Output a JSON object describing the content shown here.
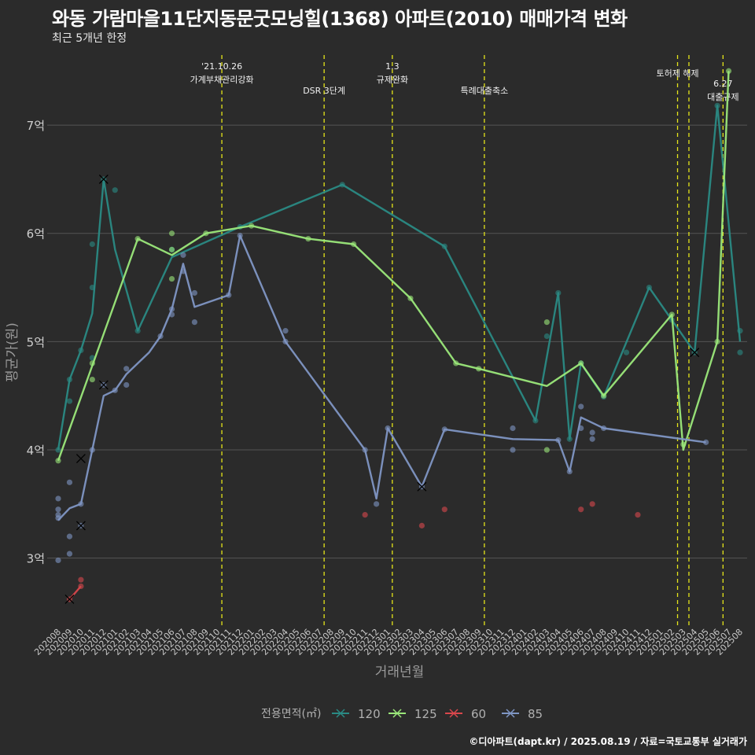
{
  "header": {
    "title": "와동 가람마을11단지동문굿모닝힐(1368) 아파트(2010) 매매가격 변화",
    "subtitle": "최근 5개년 한정"
  },
  "footer": {
    "credit": "©디아파트(dapt.kr) / 2025.08.19 / 자료=국토교통부 실거래가"
  },
  "colors": {
    "background": "#2b2b2b",
    "grid": "#555555",
    "event_line": "#e5e51a",
    "series_120": "#2a8a84",
    "series_125": "#9be87a",
    "series_60": "#d9474c",
    "series_85": "#7f96c4"
  },
  "chart_data": {
    "type": "line",
    "xlabel": "거래년월",
    "ylabel": "평균가(원)",
    "y_ticks": [
      {
        "value": 3,
        "label": "3억"
      },
      {
        "value": 4,
        "label": "4억"
      },
      {
        "value": 5,
        "label": "5억"
      },
      {
        "value": 6,
        "label": "6억"
      },
      {
        "value": 7,
        "label": "7억"
      }
    ],
    "ylim": [
      2.38,
      7.72
    ],
    "categories": [
      "202008",
      "202009",
      "202010",
      "202011",
      "202012",
      "202101",
      "202102",
      "202103",
      "202104",
      "202105",
      "202106",
      "202107",
      "202108",
      "202109",
      "202110",
      "202111",
      "202112",
      "202201",
      "202202",
      "202203",
      "202204",
      "202205",
      "202206",
      "202207",
      "202208",
      "202209",
      "202210",
      "202211",
      "202212",
      "202301",
      "202302",
      "202303",
      "202304",
      "202305",
      "202306",
      "202307",
      "202308",
      "202309",
      "202310",
      "202311",
      "202312",
      "202401",
      "202402",
      "202403",
      "202404",
      "202405",
      "202406",
      "202407",
      "202408",
      "202409",
      "202410",
      "202411",
      "202412",
      "202501",
      "202502",
      "202503",
      "202504",
      "202505",
      "202506",
      "202507",
      "202508"
    ],
    "legend": {
      "title": "전용면적(㎡)",
      "position": "bottom",
      "entries": [
        "120",
        "125",
        "60",
        "85"
      ]
    },
    "events": [
      {
        "x": 14.4,
        "lines": [
          "'21.10.26",
          "가계부채관리강화"
        ],
        "row": 1
      },
      {
        "x": 23.4,
        "lines": [
          "DSR 3단계"
        ],
        "row": 2
      },
      {
        "x": 29.4,
        "lines": [
          "1.3",
          "규제완화"
        ],
        "row": 1
      },
      {
        "x": 37.5,
        "lines": [
          "특례대출축소"
        ],
        "row": 2
      },
      {
        "x": 54.5,
        "lines": [
          "토허제 해제"
        ],
        "row": 0
      },
      {
        "x": 55.5,
        "lines": [],
        "row": 0
      },
      {
        "x": 58.5,
        "lines": [
          "6.27",
          "대출규제"
        ],
        "row": 3
      }
    ],
    "series": [
      {
        "name": "120",
        "color": "#2a8a84",
        "line": [
          [
            0,
            4.0
          ],
          [
            1,
            4.65
          ],
          [
            2,
            4.92
          ],
          [
            3,
            5.26
          ],
          [
            4,
            6.5
          ],
          [
            5,
            5.85
          ],
          [
            7,
            5.1
          ],
          [
            10,
            5.78
          ],
          [
            16,
            6.06
          ],
          [
            25,
            6.45
          ],
          [
            34,
            5.88
          ],
          [
            42,
            4.27
          ],
          [
            44,
            5.45
          ],
          [
            45,
            4.1
          ],
          [
            46,
            4.8
          ],
          [
            48,
            4.49
          ],
          [
            52,
            5.5
          ],
          [
            54,
            5.2
          ],
          [
            56,
            4.9
          ],
          [
            58,
            7.18
          ],
          [
            60,
            5.0
          ]
        ],
        "points": [
          [
            0,
            4.0
          ],
          [
            1,
            4.65
          ],
          [
            1,
            4.45
          ],
          [
            2,
            4.92
          ],
          [
            3,
            5.9
          ],
          [
            3,
            5.5
          ],
          [
            3,
            4.85
          ],
          [
            4,
            6.5
          ],
          [
            5,
            6.4
          ],
          [
            7,
            5.1
          ],
          [
            10,
            5.85
          ],
          [
            16,
            6.06
          ],
          [
            25,
            6.45
          ],
          [
            34,
            5.88
          ],
          [
            42,
            4.27
          ],
          [
            43,
            5.05
          ],
          [
            44,
            5.45
          ],
          [
            45,
            4.1
          ],
          [
            46,
            4.8
          ],
          [
            48,
            4.49
          ],
          [
            50,
            4.9
          ],
          [
            52,
            5.5
          ],
          [
            54,
            5.2
          ],
          [
            56,
            4.9
          ],
          [
            58,
            7.18
          ],
          [
            60,
            5.1
          ],
          [
            60,
            4.9
          ]
        ],
        "markers": [
          [
            2,
            3.92
          ],
          [
            4,
            6.5
          ],
          [
            56,
            4.9
          ]
        ]
      },
      {
        "name": "125",
        "color": "#9be87a",
        "line": [
          [
            0,
            3.9
          ],
          [
            7,
            5.95
          ],
          [
            10,
            5.8
          ],
          [
            13,
            6.0
          ],
          [
            17,
            6.07
          ],
          [
            22,
            5.95
          ],
          [
            26,
            5.9
          ],
          [
            31,
            5.4
          ],
          [
            35,
            4.8
          ],
          [
            37,
            4.75
          ],
          [
            43,
            4.59
          ],
          [
            46,
            4.8
          ],
          [
            48,
            4.5
          ],
          [
            54,
            5.25
          ],
          [
            55,
            4.0
          ],
          [
            58,
            5.0
          ],
          [
            59,
            7.5
          ]
        ],
        "points": [
          [
            0,
            3.9
          ],
          [
            3,
            4.8
          ],
          [
            3,
            4.65
          ],
          [
            7,
            5.95
          ],
          [
            10,
            6.0
          ],
          [
            10,
            5.85
          ],
          [
            10,
            5.58
          ],
          [
            13,
            6.0
          ],
          [
            17,
            6.07
          ],
          [
            22,
            5.95
          ],
          [
            26,
            5.9
          ],
          [
            31,
            5.4
          ],
          [
            35,
            4.8
          ],
          [
            37,
            4.75
          ],
          [
            43,
            5.18
          ],
          [
            43,
            4.0
          ],
          [
            46,
            4.8
          ],
          [
            48,
            4.5
          ],
          [
            54,
            5.25
          ],
          [
            55,
            4.05
          ],
          [
            58,
            5.0
          ],
          [
            59,
            7.5
          ]
        ],
        "markers": []
      },
      {
        "name": "60",
        "color": "#d9474c",
        "line": [
          [
            1,
            2.62
          ],
          [
            2,
            2.74
          ]
        ],
        "points": [
          [
            1,
            2.62
          ],
          [
            2,
            2.8
          ],
          [
            2,
            2.74
          ],
          [
            27,
            3.4
          ],
          [
            32,
            3.3
          ],
          [
            34,
            3.45
          ],
          [
            46,
            3.45
          ],
          [
            47,
            3.5
          ],
          [
            51,
            3.4
          ]
        ],
        "markers": [
          [
            1,
            2.62
          ]
        ]
      },
      {
        "name": "85",
        "color": "#7f96c4",
        "line": [
          [
            0,
            3.35
          ],
          [
            1,
            3.46
          ],
          [
            2,
            3.5
          ],
          [
            3,
            4.0
          ],
          [
            4,
            4.5
          ],
          [
            5,
            4.55
          ],
          [
            6,
            4.7
          ],
          [
            8,
            4.9
          ],
          [
            9,
            5.05
          ],
          [
            10,
            5.3
          ],
          [
            11,
            5.72
          ],
          [
            12,
            5.32
          ],
          [
            15,
            5.43
          ],
          [
            16,
            5.98
          ],
          [
            20,
            5.0
          ],
          [
            27,
            4.0
          ],
          [
            28,
            3.55
          ],
          [
            29,
            4.2
          ],
          [
            32,
            3.66
          ],
          [
            34,
            4.19
          ],
          [
            40,
            4.1
          ],
          [
            44,
            4.09
          ],
          [
            45,
            3.8
          ],
          [
            46,
            4.3
          ],
          [
            48,
            4.2
          ],
          [
            57,
            4.07
          ]
        ],
        "points": [
          [
            0,
            3.55
          ],
          [
            0,
            3.45
          ],
          [
            0,
            3.4
          ],
          [
            0,
            3.37
          ],
          [
            0,
            2.98
          ],
          [
            1,
            3.7
          ],
          [
            1,
            3.2
          ],
          [
            1,
            3.04
          ],
          [
            2,
            3.3
          ],
          [
            2,
            3.5
          ],
          [
            3,
            4.0
          ],
          [
            4,
            4.6
          ],
          [
            5,
            4.55
          ],
          [
            6,
            4.75
          ],
          [
            6,
            4.6
          ],
          [
            9,
            5.05
          ],
          [
            10,
            5.3
          ],
          [
            10,
            5.25
          ],
          [
            11,
            5.8
          ],
          [
            11,
            5.65
          ],
          [
            12,
            5.45
          ],
          [
            12,
            5.18
          ],
          [
            15,
            5.43
          ],
          [
            16,
            5.98
          ],
          [
            20,
            5.1
          ],
          [
            20,
            5.0
          ],
          [
            27,
            4.0
          ],
          [
            28,
            3.5
          ],
          [
            29,
            4.2
          ],
          [
            32,
            3.66
          ],
          [
            34,
            4.19
          ],
          [
            40,
            4.2
          ],
          [
            40,
            4.0
          ],
          [
            44,
            4.09
          ],
          [
            45,
            3.8
          ],
          [
            46,
            4.4
          ],
          [
            46,
            4.2
          ],
          [
            47,
            4.16
          ],
          [
            47,
            4.1
          ],
          [
            48,
            4.2
          ],
          [
            57,
            4.07
          ]
        ],
        "markers": [
          [
            2,
            3.3
          ],
          [
            4,
            4.6
          ],
          [
            32,
            3.66
          ]
        ]
      }
    ]
  }
}
